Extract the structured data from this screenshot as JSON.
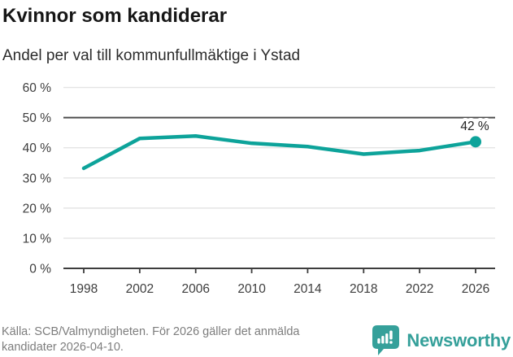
{
  "header": {
    "title": "Kvinnor som kandiderar",
    "subtitle": "Andel per val till kommunfullmäktige i Ystad"
  },
  "chart_data": {
    "type": "line",
    "title": "Kvinnor som kandiderar",
    "subtitle": "Andel per val till kommunfullmäktige i Ystad",
    "x": [
      "1998",
      "2002",
      "2006",
      "2010",
      "2014",
      "2018",
      "2022",
      "2026"
    ],
    "values": [
      33.2,
      43.1,
      43.9,
      41.5,
      40.4,
      37.9,
      39.1,
      42
    ],
    "unit": "%",
    "ylim": [
      0,
      60
    ],
    "yticks": [
      0,
      10,
      20,
      30,
      40,
      50,
      60
    ],
    "ytick_labels": [
      "0 %",
      "10 %",
      "20 %",
      "30 %",
      "40 %",
      "50 %",
      "60 %"
    ],
    "reference_line": 50,
    "end_label": "42 %",
    "line_color": "#0da39a",
    "grid": true,
    "legend": "none"
  },
  "footer": {
    "source": "Källa: SCB/Valmyndigheten. För 2026 gäller det anmälda kandidater 2026-04-10.",
    "logo_text": "Newsworthy"
  },
  "colors": {
    "accent": "#0da39a",
    "logo_teal": "#35a09a",
    "grid": "#e4e4e4",
    "reference_line": "#4d4d4d",
    "axis": "#3d3d3d",
    "title_text": "#161616",
    "muted_text": "#7d7d7d"
  }
}
